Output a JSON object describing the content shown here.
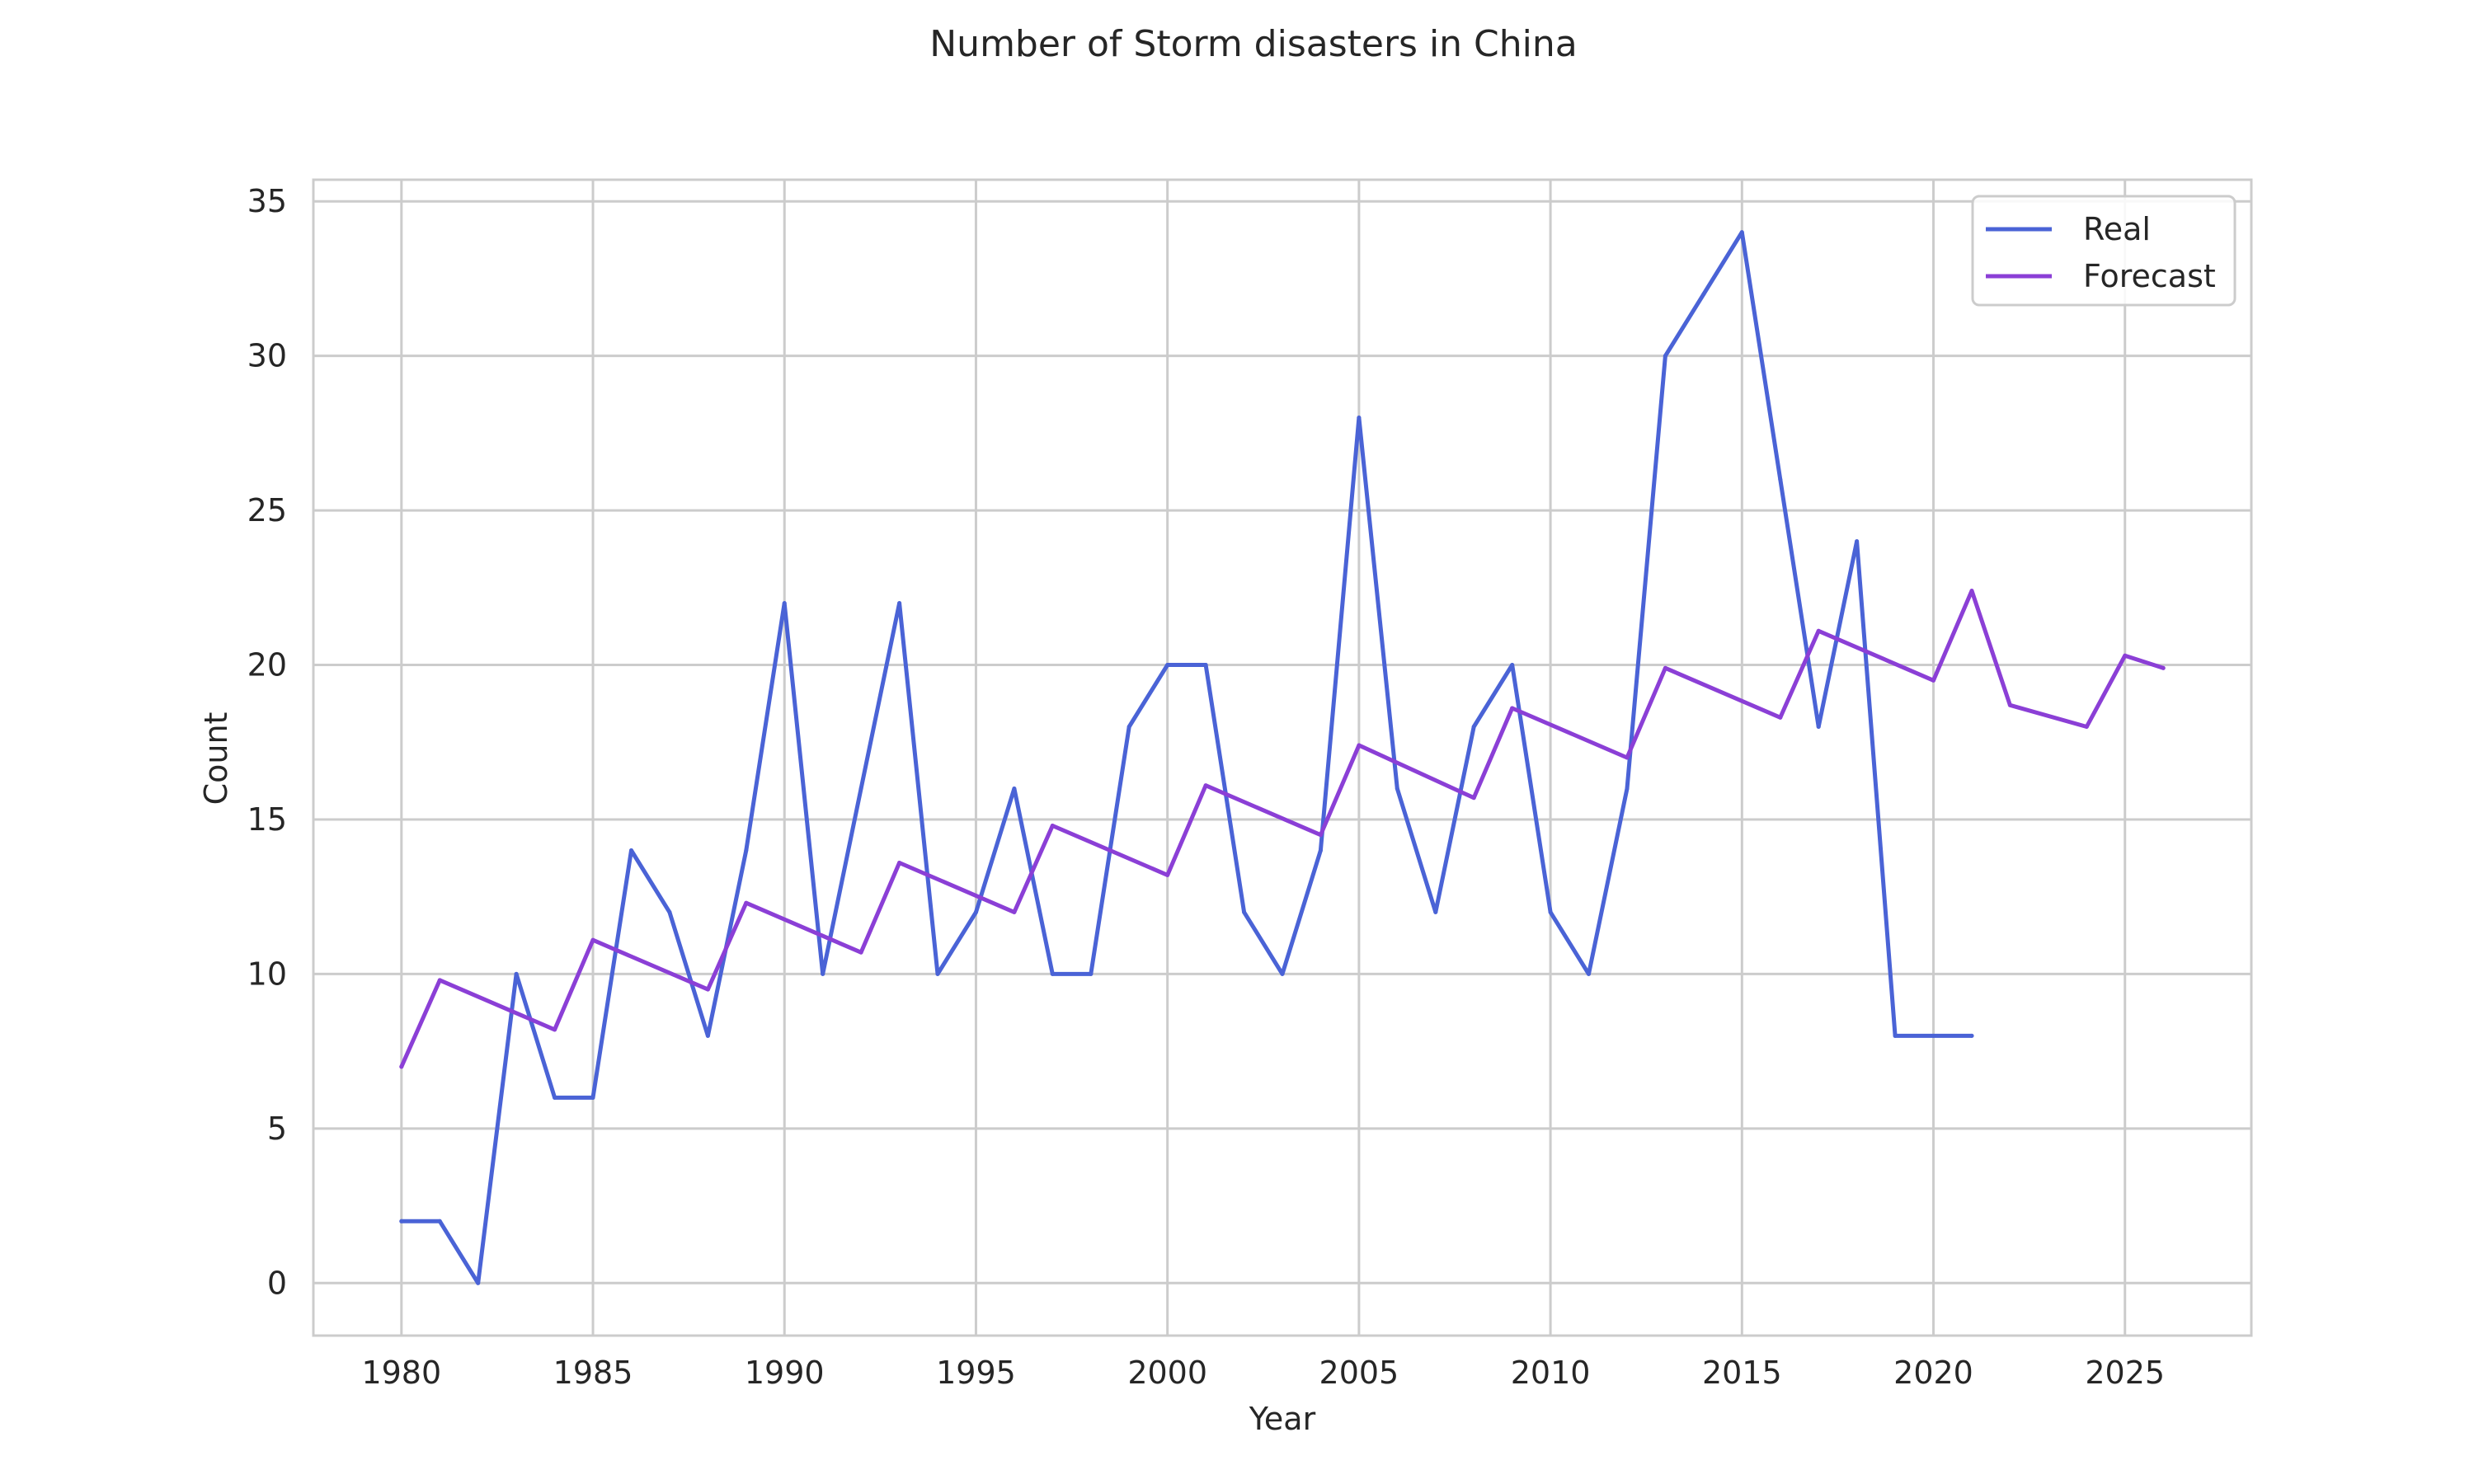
{
  "chart_data": {
    "type": "line",
    "title": "Number of Storm disasters in China",
    "xlabel": "Year",
    "ylabel": "Count",
    "xlim": [
      1977.7,
      2028.3
    ],
    "ylim": [
      -1.7,
      35.7
    ],
    "xticks": [
      1980,
      1985,
      1990,
      1995,
      2000,
      2005,
      2010,
      2015,
      2020,
      2025
    ],
    "yticks": [
      0,
      5,
      10,
      15,
      20,
      25,
      30,
      35
    ],
    "grid": true,
    "legend_position": "top-right",
    "series": [
      {
        "name": "Real",
        "color": "#4a63d6",
        "x": [
          1980,
          1981,
          1982,
          1983,
          1984,
          1985,
          1986,
          1987,
          1988,
          1989,
          1990,
          1991,
          1992,
          1993,
          1994,
          1995,
          1996,
          1997,
          1998,
          1999,
          2000,
          2001,
          2002,
          2003,
          2004,
          2005,
          2006,
          2007,
          2008,
          2009,
          2010,
          2011,
          2012,
          2013,
          2014,
          2015,
          2016,
          2017,
          2018,
          2019,
          2020,
          2021
        ],
        "y": [
          2,
          2,
          0,
          10,
          6,
          6,
          14,
          12,
          8,
          14,
          22,
          10,
          16,
          22,
          10,
          12,
          16,
          10,
          10,
          18,
          20,
          20,
          12,
          10,
          14,
          28,
          16,
          12,
          18,
          20,
          12,
          10,
          16,
          30,
          32,
          34,
          26,
          18,
          24,
          8,
          8,
          8
        ]
      },
      {
        "name": "Forecast",
        "color": "#8b3fd6",
        "x": [
          1980,
          1981,
          1984,
          1985,
          1988,
          1989,
          1992,
          1993,
          1996,
          1997,
          2000,
          2001,
          2004,
          2005,
          2008,
          2009,
          2012,
          2013,
          2016,
          2017,
          2020,
          2021,
          2022,
          2024,
          2025,
          2026
        ],
        "y": [
          7.0,
          9.8,
          8.2,
          11.1,
          9.5,
          12.3,
          10.7,
          13.6,
          12.0,
          14.8,
          13.2,
          16.1,
          14.5,
          17.4,
          15.7,
          18.6,
          17.0,
          19.9,
          18.3,
          21.1,
          19.5,
          22.4,
          18.7,
          18.0,
          20.3,
          19.9
        ]
      }
    ]
  }
}
